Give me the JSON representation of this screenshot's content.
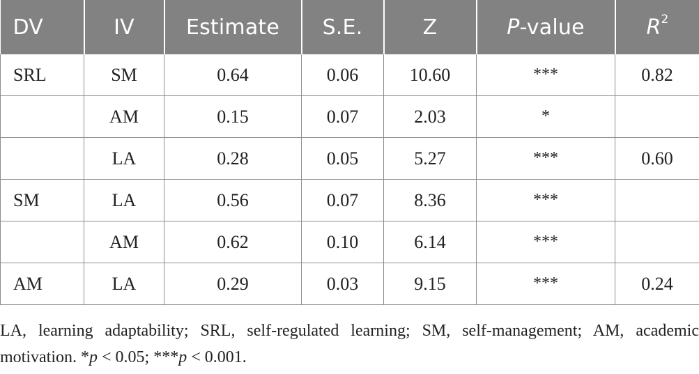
{
  "table": {
    "headers": {
      "dv": "DV",
      "iv": "IV",
      "estimate": "Estimate",
      "se": "S.E.",
      "z": "Z",
      "pvalue_italic": "P",
      "pvalue_rest": "-value",
      "r2_base": "R",
      "r2_sup": "2"
    },
    "rows": [
      {
        "dv": "SRL",
        "iv": "SM",
        "estimate": "0.64",
        "se": "0.06",
        "z": "10.60",
        "p": "***",
        "r2": "0.82"
      },
      {
        "dv": "",
        "iv": "AM",
        "estimate": "0.15",
        "se": "0.07",
        "z": "2.03",
        "p": "*",
        "r2": ""
      },
      {
        "dv": "",
        "iv": "LA",
        "estimate": "0.28",
        "se": "0.05",
        "z": "5.27",
        "p": "***",
        "r2": "0.60"
      },
      {
        "dv": "SM",
        "iv": "LA",
        "estimate": "0.56",
        "se": "0.07",
        "z": "8.36",
        "p": "***",
        "r2": ""
      },
      {
        "dv": "",
        "iv": "AM",
        "estimate": "0.62",
        "se": "0.10",
        "z": "6.14",
        "p": "***",
        "r2": ""
      },
      {
        "dv": "AM",
        "iv": "LA",
        "estimate": "0.29",
        "se": "0.03",
        "z": "9.15",
        "p": "***",
        "r2": "0.24"
      }
    ]
  },
  "footnote": {
    "text": "LA, learning adaptability; SRL, self-regulated learning; SM, self-management; AM, academic motivation. ",
    "sig1_prefix": "*",
    "sig1_var": "p",
    "sig1_rest": " < 0.05; ",
    "sig2_prefix": "***",
    "sig2_var": "p",
    "sig2_rest": " < 0.001."
  },
  "colors": {
    "header_bg": "#828282",
    "header_text": "#ffffff",
    "border": "#8c8c8c"
  }
}
